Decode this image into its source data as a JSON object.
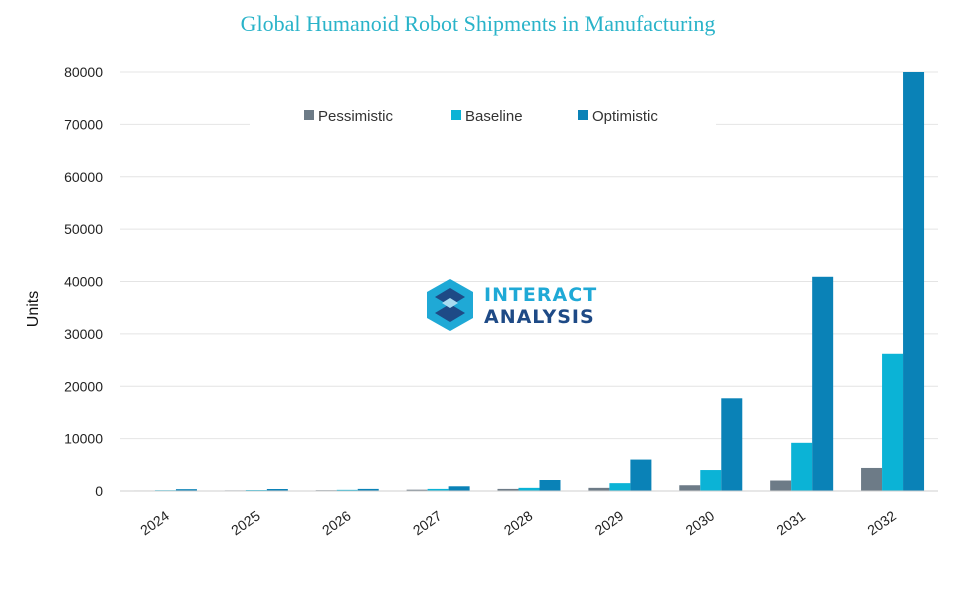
{
  "chart_data": {
    "type": "bar",
    "title": "Global Humanoid Robot Shipments in Manufacturing",
    "xlabel": "",
    "ylabel": "Units",
    "ylim": [
      0,
      80000
    ],
    "yticks": [
      0,
      10000,
      20000,
      30000,
      40000,
      50000,
      60000,
      70000,
      80000
    ],
    "categories": [
      "2024",
      "2025",
      "2026",
      "2027",
      "2028",
      "2029",
      "2030",
      "2031",
      "2032"
    ],
    "series": [
      {
        "name": "Pessimistic",
        "color": "#6d7b87",
        "values": [
          100,
          120,
          150,
          250,
          400,
          600,
          1100,
          2000,
          4400
        ]
      },
      {
        "name": "Baseline",
        "color": "#0bb3d6",
        "values": [
          150,
          180,
          220,
          400,
          600,
          1500,
          4000,
          9200,
          26200
        ]
      },
      {
        "name": "Optimistic",
        "color": "#0a82b7",
        "values": [
          350,
          380,
          400,
          900,
          2100,
          6000,
          17700,
          40900,
          80000
        ]
      }
    ],
    "legend_position": "top-center",
    "grid": true
  },
  "watermark": {
    "line1": "INTERACT",
    "line2": "ANALYSIS"
  }
}
